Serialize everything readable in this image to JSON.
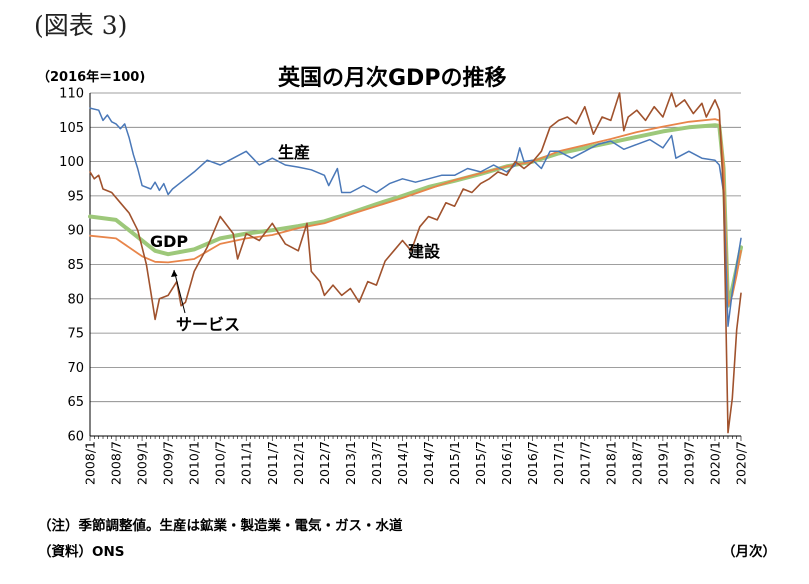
{
  "header": {
    "figure_label": "(図表 3)",
    "unit_label": "（2016年＝100)",
    "title": "英国の月次GDPの推移"
  },
  "footer": {
    "note": "（注）季節調整値。生産は鉱業・製造業・電気・ガス・水道",
    "source": "（資料）ONS",
    "x_unit": "（月次）"
  },
  "chart_data": {
    "type": "line",
    "title": "英国の月次GDPの推移",
    "ylabel": "（2016年＝100)",
    "xlabel": "（月次）",
    "ylim": [
      60,
      110
    ],
    "yticks": [
      60,
      65,
      70,
      75,
      80,
      85,
      90,
      95,
      100,
      105,
      110
    ],
    "xlim": [
      "2008/1",
      "2020/7"
    ],
    "xticks": [
      "2008/1",
      "2008/7",
      "2009/1",
      "2009/7",
      "2010/1",
      "2010/7",
      "2011/1",
      "2011/7",
      "2012/1",
      "2012/7",
      "2013/1",
      "2013/7",
      "2014/1",
      "2014/7",
      "2015/1",
      "2015/7",
      "2016/1",
      "2016/7",
      "2017/1",
      "2017/7",
      "2018/1",
      "2018/7",
      "2019/1",
      "2019/7",
      "2020/1",
      "2020/7"
    ],
    "grid": true,
    "legend": "none",
    "series": [
      {
        "name": "GDP",
        "color": "#9dc87a",
        "points": [
          [
            "2008/1",
            92.0
          ],
          [
            "2008/7",
            91.5
          ],
          [
            "2009/1",
            88.5
          ],
          [
            "2009/4",
            87.0
          ],
          [
            "2009/7",
            86.5
          ],
          [
            "2010/1",
            87.2
          ],
          [
            "2010/7",
            88.8
          ],
          [
            "2011/1",
            89.5
          ],
          [
            "2011/7",
            90.0
          ],
          [
            "2012/1",
            90.6
          ],
          [
            "2012/7",
            91.3
          ],
          [
            "2013/1",
            92.5
          ],
          [
            "2013/7",
            93.8
          ],
          [
            "2014/1",
            95.0
          ],
          [
            "2014/7",
            96.3
          ],
          [
            "2015/1",
            97.2
          ],
          [
            "2015/7",
            98.2
          ],
          [
            "2016/1",
            99.3
          ],
          [
            "2016/7",
            100.0
          ],
          [
            "2017/1",
            101.2
          ],
          [
            "2017/7",
            102.0
          ],
          [
            "2018/1",
            102.8
          ],
          [
            "2018/7",
            103.6
          ],
          [
            "2019/1",
            104.4
          ],
          [
            "2019/7",
            105.0
          ],
          [
            "2020/1",
            105.3
          ],
          [
            "2020/2",
            105.2
          ],
          [
            "2020/3",
            99.0
          ],
          [
            "2020/4",
            79.0
          ],
          [
            "2020/5",
            81.5
          ],
          [
            "2020/6",
            84.5
          ],
          [
            "2020/7",
            87.5
          ]
        ]
      },
      {
        "name": "サービス",
        "color": "#e8854a",
        "points": [
          [
            "2008/1",
            89.2
          ],
          [
            "2008/7",
            88.8
          ],
          [
            "2009/1",
            86.2
          ],
          [
            "2009/4",
            85.4
          ],
          [
            "2009/7",
            85.3
          ],
          [
            "2010/1",
            85.8
          ],
          [
            "2010/7",
            88.0
          ],
          [
            "2011/1",
            88.8
          ],
          [
            "2011/7",
            89.3
          ],
          [
            "2012/1",
            90.3
          ],
          [
            "2012/7",
            91.0
          ],
          [
            "2013/1",
            92.3
          ],
          [
            "2013/7",
            93.5
          ],
          [
            "2014/1",
            94.7
          ],
          [
            "2014/7",
            96.0
          ],
          [
            "2015/1",
            97.3
          ],
          [
            "2015/7",
            98.3
          ],
          [
            "2016/1",
            99.3
          ],
          [
            "2016/7",
            100.0
          ],
          [
            "2017/1",
            101.5
          ],
          [
            "2017/7",
            102.4
          ],
          [
            "2018/1",
            103.3
          ],
          [
            "2018/7",
            104.3
          ],
          [
            "2019/1",
            105.1
          ],
          [
            "2019/7",
            105.8
          ],
          [
            "2020/1",
            106.2
          ],
          [
            "2020/2",
            106.0
          ],
          [
            "2020/3",
            99.5
          ],
          [
            "2020/4",
            79.0
          ],
          [
            "2020/5",
            80.5
          ],
          [
            "2020/6",
            83.5
          ],
          [
            "2020/7",
            87.0
          ]
        ]
      },
      {
        "name": "生産",
        "color": "#4a78b8",
        "points": [
          [
            "2008/1",
            107.8
          ],
          [
            "2008/3",
            107.5
          ],
          [
            "2008/4",
            106.0
          ],
          [
            "2008/5",
            106.8
          ],
          [
            "2008/6",
            105.8
          ],
          [
            "2008/7",
            105.5
          ],
          [
            "2008/8",
            104.8
          ],
          [
            "2008/9",
            105.5
          ],
          [
            "2008/10",
            103.5
          ],
          [
            "2008/11",
            101.0
          ],
          [
            "2008/12",
            99.0
          ],
          [
            "2009/1",
            96.5
          ],
          [
            "2009/3",
            96.0
          ],
          [
            "2009/4",
            97.0
          ],
          [
            "2009/5",
            95.8
          ],
          [
            "2009/6",
            96.8
          ],
          [
            "2009/7",
            95.2
          ],
          [
            "2009/8",
            96.0
          ],
          [
            "2009/10",
            97.0
          ],
          [
            "2010/1",
            98.5
          ],
          [
            "2010/4",
            100.2
          ],
          [
            "2010/7",
            99.5
          ],
          [
            "2010/10",
            100.5
          ],
          [
            "2011/1",
            101.5
          ],
          [
            "2011/4",
            99.5
          ],
          [
            "2011/7",
            100.5
          ],
          [
            "2011/10",
            99.5
          ],
          [
            "2012/1",
            99.2
          ],
          [
            "2012/4",
            98.8
          ],
          [
            "2012/7",
            98.0
          ],
          [
            "2012/8",
            96.5
          ],
          [
            "2012/10",
            99.0
          ],
          [
            "2012/11",
            95.5
          ],
          [
            "2013/1",
            95.5
          ],
          [
            "2013/4",
            96.5
          ],
          [
            "2013/7",
            95.5
          ],
          [
            "2013/10",
            96.8
          ],
          [
            "2014/1",
            97.5
          ],
          [
            "2014/4",
            97.0
          ],
          [
            "2014/7",
            97.5
          ],
          [
            "2014/10",
            98.0
          ],
          [
            "2015/1",
            98.0
          ],
          [
            "2015/4",
            99.0
          ],
          [
            "2015/7",
            98.5
          ],
          [
            "2015/10",
            99.5
          ],
          [
            "2016/1",
            98.5
          ],
          [
            "2016/3",
            99.5
          ],
          [
            "2016/4",
            102.0
          ],
          [
            "2016/5",
            100.0
          ],
          [
            "2016/7",
            100.2
          ],
          [
            "2016/9",
            99.0
          ],
          [
            "2016/11",
            101.5
          ],
          [
            "2017/1",
            101.5
          ],
          [
            "2017/4",
            100.5
          ],
          [
            "2017/7",
            101.5
          ],
          [
            "2017/10",
            102.5
          ],
          [
            "2018/1",
            103.0
          ],
          [
            "2018/4",
            101.8
          ],
          [
            "2018/7",
            102.5
          ],
          [
            "2018/10",
            103.2
          ],
          [
            "2019/1",
            102.0
          ],
          [
            "2019/3",
            103.8
          ],
          [
            "2019/4",
            100.5
          ],
          [
            "2019/7",
            101.5
          ],
          [
            "2019/10",
            100.5
          ],
          [
            "2020/1",
            100.2
          ],
          [
            "2020/2",
            99.5
          ],
          [
            "2020/3",
            95.5
          ],
          [
            "2020/4",
            76.0
          ],
          [
            "2020/5",
            81.0
          ],
          [
            "2020/6",
            85.0
          ],
          [
            "2020/7",
            88.8
          ]
        ]
      },
      {
        "name": "建設",
        "color": "#a0522d",
        "points": [
          [
            "2008/1",
            98.5
          ],
          [
            "2008/2",
            97.5
          ],
          [
            "2008/3",
            98.0
          ],
          [
            "2008/4",
            96.0
          ],
          [
            "2008/6",
            95.5
          ],
          [
            "2008/8",
            94.0
          ],
          [
            "2008/10",
            92.5
          ],
          [
            "2008/12",
            90.0
          ],
          [
            "2009/1",
            87.5
          ],
          [
            "2009/2",
            85.0
          ],
          [
            "2009/3",
            81.0
          ],
          [
            "2009/4",
            77.0
          ],
          [
            "2009/5",
            80.0
          ],
          [
            "2009/7",
            80.5
          ],
          [
            "2009/9",
            82.5
          ],
          [
            "2009/10",
            79.0
          ],
          [
            "2009/11",
            79.5
          ],
          [
            "2010/1",
            84.0
          ],
          [
            "2010/4",
            87.5
          ],
          [
            "2010/7",
            92.0
          ],
          [
            "2010/10",
            89.5
          ],
          [
            "2010/11",
            85.8
          ],
          [
            "2011/1",
            89.5
          ],
          [
            "2011/4",
            88.5
          ],
          [
            "2011/7",
            91.0
          ],
          [
            "2011/10",
            88.0
          ],
          [
            "2012/1",
            87.0
          ],
          [
            "2012/3",
            91.0
          ],
          [
            "2012/4",
            84.0
          ],
          [
            "2012/6",
            82.5
          ],
          [
            "2012/7",
            80.5
          ],
          [
            "2012/9",
            82.0
          ],
          [
            "2012/11",
            80.5
          ],
          [
            "2013/1",
            81.5
          ],
          [
            "2013/3",
            79.5
          ],
          [
            "2013/5",
            82.5
          ],
          [
            "2013/7",
            82.0
          ],
          [
            "2013/9",
            85.5
          ],
          [
            "2013/11",
            87.0
          ],
          [
            "2014/1",
            88.5
          ],
          [
            "2014/3",
            87.0
          ],
          [
            "2014/5",
            90.5
          ],
          [
            "2014/7",
            92.0
          ],
          [
            "2014/9",
            91.5
          ],
          [
            "2014/11",
            94.0
          ],
          [
            "2015/1",
            93.5
          ],
          [
            "2015/3",
            96.0
          ],
          [
            "2015/5",
            95.5
          ],
          [
            "2015/7",
            96.8
          ],
          [
            "2015/9",
            97.5
          ],
          [
            "2015/11",
            98.5
          ],
          [
            "2016/1",
            98.0
          ],
          [
            "2016/3",
            100.0
          ],
          [
            "2016/5",
            99.0
          ],
          [
            "2016/7",
            100.0
          ],
          [
            "2016/9",
            101.5
          ],
          [
            "2016/11",
            105.0
          ],
          [
            "2017/1",
            106.0
          ],
          [
            "2017/3",
            106.5
          ],
          [
            "2017/5",
            105.5
          ],
          [
            "2017/7",
            108.0
          ],
          [
            "2017/9",
            104.0
          ],
          [
            "2017/11",
            106.5
          ],
          [
            "2018/1",
            106.0
          ],
          [
            "2018/3",
            110.0
          ],
          [
            "2018/4",
            104.5
          ],
          [
            "2018/5",
            106.5
          ],
          [
            "2018/7",
            107.5
          ],
          [
            "2018/9",
            106.0
          ],
          [
            "2018/11",
            108.0
          ],
          [
            "2019/1",
            106.5
          ],
          [
            "2019/3",
            110.0
          ],
          [
            "2019/4",
            108.0
          ],
          [
            "2019/6",
            109.0
          ],
          [
            "2019/8",
            107.0
          ],
          [
            "2019/10",
            108.5
          ],
          [
            "2019/11",
            106.5
          ],
          [
            "2020/1",
            109.0
          ],
          [
            "2020/2",
            107.5
          ],
          [
            "2020/3",
            95.0
          ],
          [
            "2020/4",
            60.5
          ],
          [
            "2020/5",
            65.5
          ],
          [
            "2020/6",
            75.5
          ],
          [
            "2020/7",
            80.8
          ]
        ]
      }
    ],
    "annotations": [
      {
        "text": "生産",
        "series": "生産"
      },
      {
        "text": "GDP",
        "series": "GDP"
      },
      {
        "text": "サービス",
        "series": "サービス"
      },
      {
        "text": "建設",
        "series": "建設"
      }
    ]
  }
}
